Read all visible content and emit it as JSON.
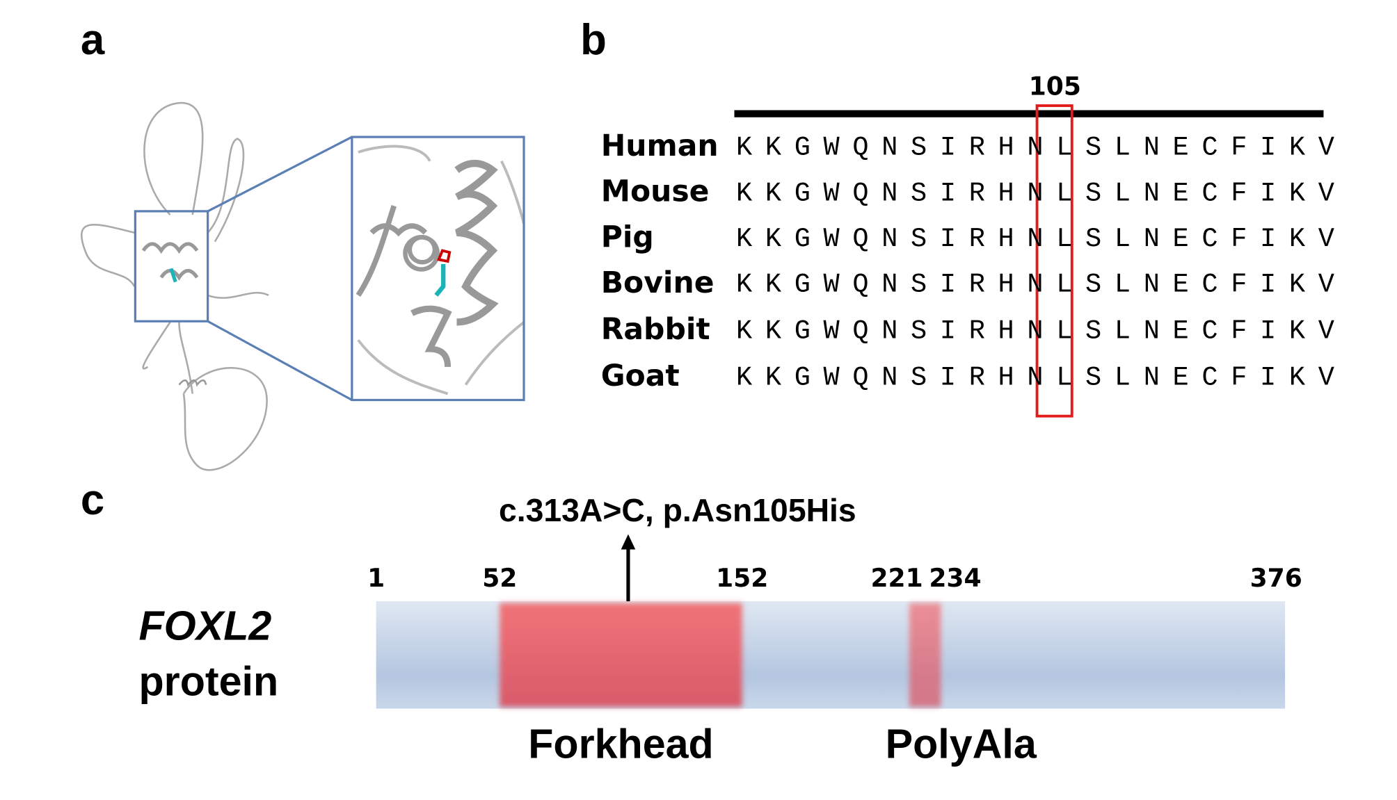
{
  "panels": {
    "a": "a",
    "b": "b",
    "c": "c"
  },
  "alignment": {
    "position": 105,
    "species": [
      {
        "name": "Human",
        "sequence": "KKGWQNSIRHNLSLNECFIKV"
      },
      {
        "name": "Mouse",
        "sequence": "KKGWQNSIRHNLSLNECFIKV"
      },
      {
        "name": "Pig",
        "sequence": "KKGWQNSIRHNLSLNECFIKV"
      },
      {
        "name": "Bovine",
        "sequence": "KKGWQNSIRHNLSLNECFIKV"
      },
      {
        "name": "Rabbit",
        "sequence": "KKGWQNSIRHNLSLNECFIKV"
      },
      {
        "name": "Goat",
        "sequence": "KKGWQNSIRHNLSLNECFIKV"
      }
    ]
  },
  "protein": {
    "gene": "FOXL2",
    "label": "protein",
    "mutation": "c.313A>C, p.Asn105His",
    "start": 1,
    "end": 376,
    "domains": [
      {
        "name": "Forkhead",
        "start": 52,
        "end": 152
      },
      {
        "name": "PolyAla",
        "start": 221,
        "end": 234
      }
    ]
  }
}
